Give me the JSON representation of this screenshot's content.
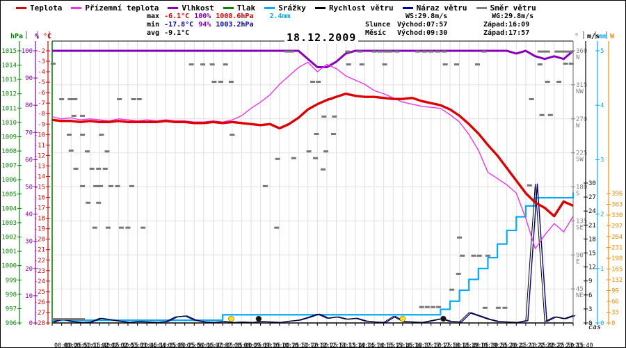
{
  "date": "18.12.2009",
  "legend": {
    "items": [
      {
        "label": "Teplota",
        "color": "#dd0000"
      },
      {
        "label": "Přízemní teplota",
        "color": "#ee33ee"
      },
      {
        "label": "Vlhkost",
        "color": "#8800bb"
      },
      {
        "label": "Tlak",
        "color": "#008800"
      },
      {
        "label": "Srážky",
        "color": "#00aaff"
      },
      {
        "label": "Rychlost větru",
        "color": "#000000"
      },
      {
        "label": "Náraz větru",
        "color": "#000099"
      },
      {
        "label": "Směr větru",
        "color": "#808080"
      }
    ]
  },
  "stats": {
    "rows": [
      {
        "label": "max",
        "temp": "-6.1°C",
        "hum": "100%",
        "press": "1008.6hPa",
        "rain": "2.4mm"
      },
      {
        "label": "min",
        "temp": "-17.8°C",
        "hum": "94%",
        "press": "1003.2hPa"
      },
      {
        "label": "avg",
        "temp": "-9.1°C"
      }
    ]
  },
  "info": {
    "rows": [
      {
        "label": "",
        "c1": "WS:29.8m/s",
        "c2": "WG:29.8m/s"
      },
      {
        "label": "Slunce",
        "c1": "Východ:07:57",
        "c2": "Západ:16:09"
      },
      {
        "label": "Měsíc",
        "c1": "Východ:09:30",
        "c2": "Západ:17:57"
      }
    ]
  },
  "time_axis": {
    "unit": "čas"
  },
  "axes": {
    "left": [
      {
        "name": "pressure-axis",
        "unit": "hPa",
        "color": "#008800",
        "x": 27,
        "scale": "press",
        "min": 996,
        "max": 1015,
        "step": 1
      },
      {
        "name": "humidity-axis",
        "unit": "%",
        "color": "#8800bb",
        "x": 50,
        "scale": "hum",
        "min": 0,
        "max": 100,
        "step": 10
      },
      {
        "name": "temperature-axis",
        "unit": "°C",
        "color": "#dd0000",
        "x": 68,
        "scale": "temp",
        "min": -28,
        "max": -2,
        "step": 1
      }
    ],
    "right": [
      {
        "name": "direction-axis",
        "unit": "°",
        "color": "#808080",
        "x": 823,
        "scale": "dir",
        "min": 45,
        "max": 360,
        "step": 45,
        "cardinals": {
          "360": "N",
          "315": "NW",
          "270": "W",
          "225": "SW",
          "180": "S",
          "135": "SE",
          "90": "E",
          "45": "NE"
        }
      },
      {
        "name": "windspeed-axis",
        "unit": "m/s",
        "color": "#000000",
        "x": 841,
        "scale": "ms",
        "min": 0,
        "max": 30,
        "step": 3
      },
      {
        "name": "rain-axis",
        "unit": "mm",
        "color": "#00aaff",
        "x": 858,
        "scale": "mm",
        "min": 0,
        "max": 5,
        "step": 1
      },
      {
        "name": "radiation-axis",
        "unit": "W",
        "color": "#ff8800",
        "x": 874,
        "scale": "w",
        "min": 0,
        "max": 396,
        "step": 33
      }
    ],
    "header_seps": [
      37,
      53,
      70,
      838,
      855,
      871
    ]
  },
  "markers": [
    {
      "type": "sun",
      "time": "07:57",
      "x_index": 18.9
    },
    {
      "type": "sun",
      "time": "16:09",
      "x_index": 37.0
    },
    {
      "type": "moon",
      "time": "09:30",
      "x_index": 21.8
    },
    {
      "type": "moon",
      "time": "17:57",
      "x_index": 41.3
    }
  ],
  "chart_data": {
    "type": "line",
    "title": "18.12.2009",
    "xlabel": "čas",
    "x": [
      "00:00",
      "00:25",
      "00:50",
      "01:15",
      "01:40",
      "02:05",
      "02:30",
      "02:55",
      "03:20",
      "03:45",
      "04:10",
      "04:35",
      "05:00",
      "05:25",
      "05:50",
      "06:15",
      "06:40",
      "07:05",
      "07:35",
      "08:00",
      "08:25",
      "09:10",
      "09:35",
      "10:00",
      "10:25",
      "10:50",
      "11:20",
      "12:00",
      "12:25",
      "12:50",
      "13:15",
      "13:40",
      "14:05",
      "14:30",
      "14:55",
      "15:20",
      "15:45",
      "16:10",
      "16:35",
      "17:00",
      "17:25",
      "17:50",
      "18:15",
      "18:40",
      "19:05",
      "19:30",
      "19:55",
      "20:20",
      "20:45",
      "21:10",
      "21:35",
      "22:00",
      "22:25",
      "22:50",
      "23:15",
      "23:40"
    ],
    "y_axes": {
      "temp_c": [
        -28,
        -2
      ],
      "humidity_pct": [
        0,
        100
      ],
      "pressure_hpa": [
        996,
        1015
      ],
      "direction_deg": [
        0,
        360
      ],
      "rain_mm": [
        0,
        5
      ],
      "wind_ms": [
        0,
        30
      ],
      "radiation_w": [
        0,
        396
      ]
    },
    "series": [
      {
        "name": "Srážky",
        "unit": "mm",
        "color": "#00aaff",
        "scale": "mm",
        "width": 2.2,
        "step": true,
        "values": [
          0.05,
          0.05,
          0.05,
          0.05,
          0.05,
          0.05,
          0.05,
          0.05,
          0.05,
          0.05,
          0.05,
          0.05,
          0.05,
          0.05,
          0.05,
          0.05,
          0.05,
          0.05,
          0.15,
          0.15,
          0.15,
          0.15,
          0.15,
          0.15,
          0.15,
          0.15,
          0.15,
          0.15,
          0.15,
          0.15,
          0.15,
          0.15,
          0.15,
          0.15,
          0.15,
          0.15,
          0.15,
          0.15,
          0.15,
          0.15,
          0.15,
          0.25,
          0.4,
          0.6,
          0.8,
          1.0,
          1.2,
          1.45,
          1.7,
          1.95,
          2.15,
          2.3,
          2.3,
          2.3,
          2.3,
          2.4
        ]
      },
      {
        "name": "Tlak",
        "unit": "hPa",
        "color": "#008800",
        "scale": "press",
        "width": 1.2,
        "values": []
      },
      {
        "name": "Náraz větru",
        "unit": "m/s",
        "color": "#000099",
        "scale": "ms",
        "width": 1.4,
        "x_offset": 3,
        "values": [
          0.2,
          0.8,
          0.3,
          0.1,
          0.2,
          1.0,
          0.7,
          0.4,
          0.1,
          0.3,
          0.2,
          0.1,
          0.3,
          1.3,
          1.5,
          0.6,
          0.2,
          0.1,
          0.3,
          0.1,
          0.2,
          0.1,
          0.3,
          0.2,
          0.1,
          0.4,
          0.6,
          1.2,
          1.9,
          1.0,
          1.3,
          0.8,
          1.0,
          0.4,
          0.2,
          0.1,
          1.4,
          0.3,
          0.2,
          0.1,
          0.5,
          0.9,
          0.3,
          0.2,
          2.2,
          1.5,
          0.8,
          0.3,
          0.2,
          0.1,
          0.5,
          29.8,
          0.3,
          1.3,
          0.9,
          1.6
        ]
      },
      {
        "name": "Rychlost větru",
        "unit": "m/s",
        "color": "#000000",
        "scale": "ms",
        "width": 1,
        "values": [
          0.2,
          0.8,
          0.3,
          0.1,
          0.2,
          1.0,
          0.7,
          0.4,
          0.1,
          0.3,
          0.2,
          0.1,
          0.3,
          1.3,
          1.5,
          0.6,
          0.2,
          0.1,
          0.3,
          0.1,
          0.2,
          0.1,
          0.3,
          0.2,
          0.1,
          0.4,
          0.6,
          1.2,
          1.9,
          1.0,
          1.3,
          0.8,
          1.0,
          0.4,
          0.2,
          0.1,
          1.4,
          0.3,
          0.2,
          0.1,
          0.5,
          0.9,
          0.3,
          0.2,
          2.2,
          1.5,
          0.8,
          0.3,
          0.2,
          0.1,
          0.5,
          29.8,
          0.3,
          1.3,
          0.9,
          1.6
        ]
      },
      {
        "name": "Vlhkost",
        "unit": "%",
        "color": "#8800bb",
        "scale": "hum",
        "width": 3,
        "values": [
          100,
          100,
          100,
          100,
          100,
          100,
          100,
          100,
          100,
          100,
          100,
          100,
          100,
          100,
          100,
          100,
          100,
          100,
          100,
          100,
          100,
          100,
          100,
          100,
          100,
          100,
          100,
          97,
          94,
          94,
          96,
          99,
          100,
          100,
          100,
          100,
          100,
          100,
          100,
          100,
          100,
          100,
          100,
          100,
          100,
          100,
          100,
          100,
          100,
          99,
          100,
          98,
          97,
          98,
          97,
          100
        ]
      },
      {
        "name": "Směr větru",
        "unit": "°",
        "color": "#777777",
        "scale": "dir",
        "type": "scatter",
        "points": [
          [
            0.2,
            5
          ],
          [
            0.7,
            5
          ],
          [
            1.2,
            5
          ],
          [
            1.7,
            5
          ],
          [
            2.2,
            5
          ],
          [
            2.7,
            5
          ],
          [
            3.2,
            5
          ],
          [
            0.1,
            343
          ],
          [
            14.7,
            342
          ],
          [
            15.9,
            342
          ],
          [
            16.9,
            342
          ],
          [
            18.3,
            342
          ],
          [
            17.1,
            319
          ],
          [
            17.8,
            319
          ],
          [
            18.9,
            319
          ],
          [
            27.5,
            319
          ],
          [
            28.1,
            319
          ],
          [
            52.3,
            319
          ],
          [
            53.5,
            319
          ],
          [
            1.0,
            296
          ],
          [
            1.9,
            296
          ],
          [
            2.4,
            296
          ],
          [
            7.1,
            296
          ],
          [
            8.6,
            296
          ],
          [
            9.2,
            296
          ],
          [
            29.3,
            296
          ],
          [
            50.6,
            296
          ],
          [
            2.3,
            274
          ],
          [
            3.2,
            274
          ],
          [
            28.7,
            273
          ],
          [
            29.8,
            273
          ],
          [
            51.7,
            275
          ],
          [
            52.6,
            275
          ],
          [
            1.8,
            249
          ],
          [
            3.2,
            249
          ],
          [
            5.2,
            249
          ],
          [
            19.0,
            249
          ],
          [
            27.9,
            250
          ],
          [
            29.7,
            250
          ],
          [
            2.0,
            228
          ],
          [
            3.7,
            227
          ],
          [
            5.8,
            227
          ],
          [
            27.1,
            227
          ],
          [
            28.9,
            227
          ],
          [
            2.5,
            204
          ],
          [
            4.2,
            204
          ],
          [
            4.9,
            204
          ],
          [
            5.6,
            204
          ],
          [
            28.6,
            203
          ],
          [
            3.2,
            181
          ],
          [
            4.6,
            181
          ],
          [
            5.1,
            181
          ],
          [
            6.2,
            181
          ],
          [
            6.9,
            181
          ],
          [
            8.4,
            181
          ],
          [
            22.5,
            181
          ],
          [
            50.4,
            182
          ],
          [
            23.8,
            217
          ],
          [
            25.5,
            218
          ],
          [
            27.8,
            218
          ],
          [
            3.8,
            159
          ],
          [
            4.9,
            159
          ],
          [
            4.5,
            126
          ],
          [
            5.9,
            126
          ],
          [
            7.3,
            126
          ],
          [
            8.0,
            126
          ],
          [
            9.6,
            126
          ],
          [
            23.7,
            126
          ],
          [
            43.0,
            113
          ],
          [
            43.3,
            89
          ],
          [
            44.5,
            89
          ],
          [
            45.1,
            89
          ],
          [
            46.0,
            89
          ],
          [
            42.9,
            65
          ],
          [
            42.2,
            44
          ],
          [
            39.0,
            21
          ],
          [
            39.6,
            21
          ],
          [
            40.2,
            21
          ],
          [
            40.8,
            21
          ],
          [
            45.7,
            20
          ],
          [
            47.1,
            20
          ],
          [
            47.8,
            20
          ],
          [
            24.8,
            359
          ],
          [
            25.3,
            359
          ],
          [
            31.2,
            359
          ],
          [
            32.5,
            359
          ],
          [
            34.0,
            359
          ],
          [
            34.6,
            359
          ],
          [
            35.2,
            359
          ],
          [
            35.7,
            359
          ],
          [
            36.4,
            359
          ],
          [
            38.6,
            359
          ],
          [
            39.3,
            359
          ],
          [
            40.0,
            359
          ],
          [
            40.7,
            359
          ],
          [
            41.4,
            359
          ],
          [
            45.6,
            359
          ],
          [
            51.5,
            359
          ],
          [
            51.9,
            359
          ],
          [
            52.3,
            359
          ],
          [
            53.3,
            359
          ],
          [
            53.8,
            359
          ],
          [
            54.3,
            359
          ],
          [
            54.8,
            359
          ],
          [
            31.3,
            342
          ],
          [
            32.7,
            342
          ],
          [
            35.1,
            342
          ],
          [
            41.5,
            342
          ],
          [
            42.7,
            342
          ],
          [
            44.9,
            342
          ],
          [
            51.5,
            342
          ],
          [
            54.2,
            343
          ],
          [
            54.8,
            343
          ]
        ]
      },
      {
        "name": "Přízemní teplota",
        "unit": "°C",
        "color": "#ee33ee",
        "scale": "temp",
        "width": 1.4,
        "values": [
          -8.3,
          -8.5,
          -8.4,
          -8.6,
          -8.5,
          -8.6,
          -8.7,
          -8.5,
          -8.6,
          -8.7,
          -8.6,
          -8.7,
          -8.6,
          -8.7,
          -8.7,
          -8.8,
          -8.8,
          -8.7,
          -8.8,
          -8.6,
          -8.2,
          -7.5,
          -6.9,
          -6.2,
          -5.2,
          -4.4,
          -3.6,
          -3.1,
          -4.0,
          -3.3,
          -3.7,
          -4.4,
          -4.8,
          -5.2,
          -5.8,
          -6.1,
          -6.5,
          -6.9,
          -7.1,
          -7.3,
          -7.4,
          -7.5,
          -8.1,
          -8.8,
          -10.0,
          -11.5,
          -13.6,
          -14.2,
          -14.8,
          -15.6,
          -18.0,
          -20.9,
          -19.6,
          -18.5,
          -19.3,
          -17.8
        ]
      },
      {
        "name": "Teplota",
        "unit": "°C",
        "color": "#dd0000",
        "scale": "temp",
        "width": 3.4,
        "values": [
          -8.6,
          -8.7,
          -8.7,
          -8.8,
          -8.7,
          -8.8,
          -8.8,
          -8.7,
          -8.8,
          -8.8,
          -8.8,
          -8.8,
          -8.7,
          -8.8,
          -8.8,
          -8.9,
          -8.9,
          -8.8,
          -8.9,
          -8.8,
          -8.9,
          -9.0,
          -9.1,
          -9.0,
          -9.4,
          -9.0,
          -8.4,
          -7.6,
          -7.1,
          -6.7,
          -6.4,
          -6.1,
          -6.3,
          -6.4,
          -6.4,
          -6.5,
          -6.6,
          -6.6,
          -6.5,
          -6.8,
          -7.0,
          -7.2,
          -7.6,
          -8.2,
          -9.0,
          -9.9,
          -11.0,
          -12.0,
          -13.2,
          -14.4,
          -15.6,
          -16.5,
          -17.0,
          -17.8,
          -16.4,
          -16.8
        ]
      }
    ]
  }
}
